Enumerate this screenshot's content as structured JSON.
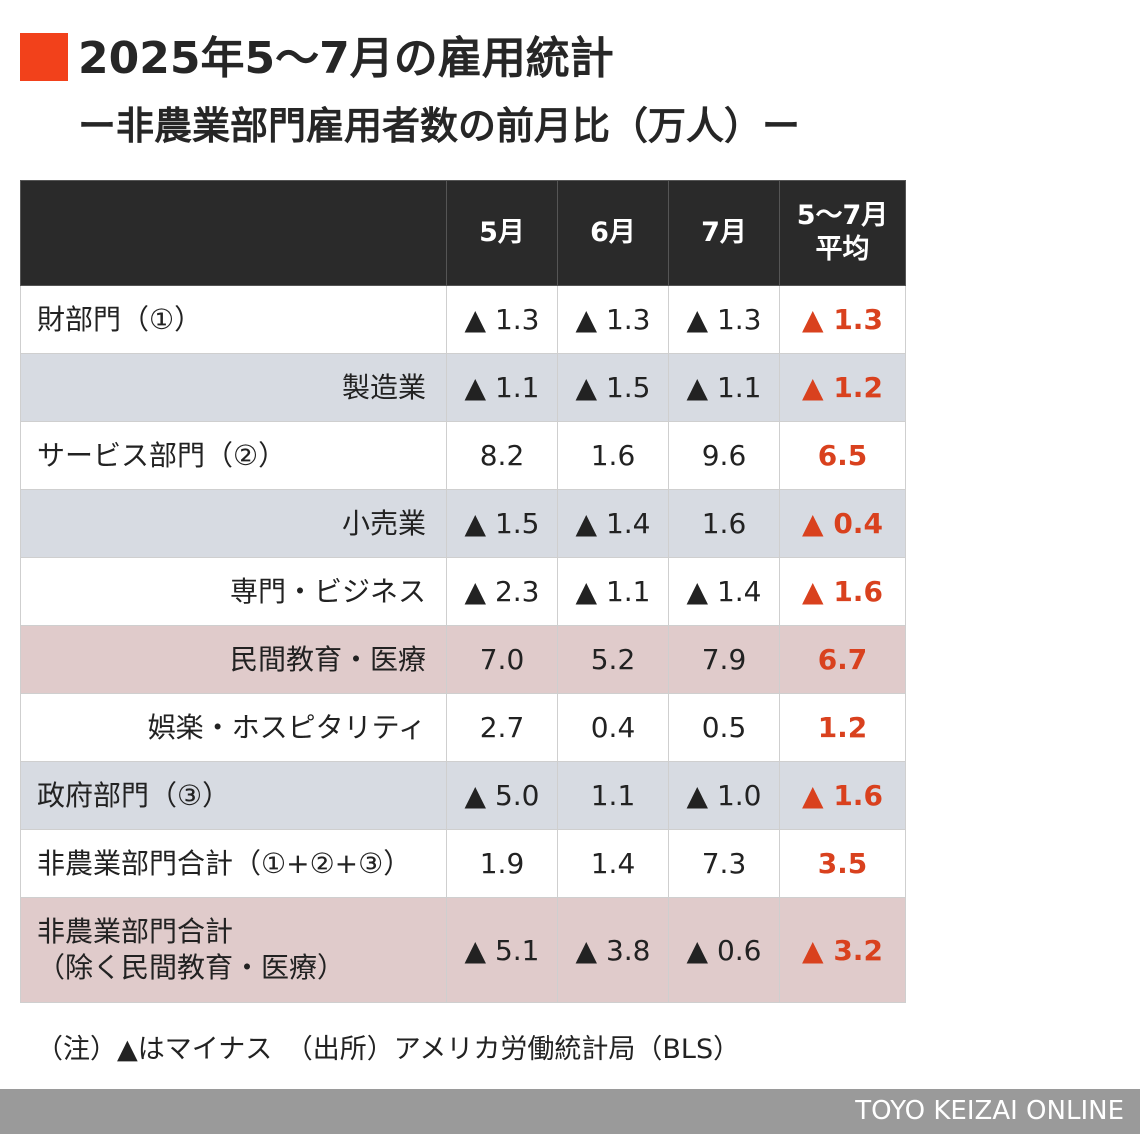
{
  "header": {
    "title": "2025年5～7月の雇用統計",
    "subtitle": "ー非農業部門雇用者数の前月比（万人）ー"
  },
  "colors": {
    "accent": "#f2411b",
    "header_bg": "#2a2a2a",
    "avg_text": "#d9411e",
    "row_gray": "#d7dbe2",
    "row_pink": "#e0cbcb",
    "footer_bg": "#9a9a9a"
  },
  "chart_data": {
    "type": "table",
    "columns": [
      "",
      "5月",
      "6月",
      "7月",
      "5～7月\n平均"
    ],
    "rows": [
      {
        "label": "財部門（①）",
        "indent": false,
        "bg": "white",
        "values": [
          "▲ 1.3",
          "▲ 1.3",
          "▲ 1.3",
          "▲ 1.3"
        ]
      },
      {
        "label": "製造業",
        "indent": true,
        "bg": "gray",
        "values": [
          "▲ 1.1",
          "▲ 1.5",
          "▲ 1.1",
          "▲ 1.2"
        ]
      },
      {
        "label": "サービス部門（②）",
        "indent": false,
        "bg": "white",
        "values": [
          "8.2",
          "1.6",
          "9.6",
          "6.5"
        ]
      },
      {
        "label": "小売業",
        "indent": true,
        "bg": "gray",
        "values": [
          "▲ 1.5",
          "▲ 1.4",
          "1.6",
          "▲ 0.4"
        ]
      },
      {
        "label": "専門・ビジネス",
        "indent": true,
        "bg": "white",
        "values": [
          "▲ 2.3",
          "▲ 1.1",
          "▲ 1.4",
          "▲ 1.6"
        ]
      },
      {
        "label": "民間教育・医療",
        "indent": true,
        "bg": "pink",
        "values": [
          "7.0",
          "5.2",
          "7.9",
          "6.7"
        ]
      },
      {
        "label": "娯楽・ホスピタリティ",
        "indent": true,
        "bg": "white",
        "values": [
          "2.7",
          "0.4",
          "0.5",
          "1.2"
        ]
      },
      {
        "label": "政府部門（③）",
        "indent": false,
        "bg": "gray",
        "values": [
          "▲ 5.0",
          "1.1",
          "▲ 1.0",
          "▲ 1.6"
        ]
      },
      {
        "label": "非農業部門合計（①+②+③）",
        "indent": false,
        "bg": "white",
        "values": [
          "1.9",
          "1.4",
          "7.3",
          "3.5"
        ]
      },
      {
        "label": "非農業部門合計\n（除く民間教育・医療）",
        "indent": false,
        "bg": "pink",
        "tall": true,
        "values": [
          "▲ 5.1",
          "▲ 3.8",
          "▲ 0.6",
          "▲ 3.2"
        ]
      }
    ]
  },
  "notes": "（注）▲はマイナス　（出所）アメリカ労働統計局（BLS）",
  "footer": {
    "credit": "TOYO KEIZAI ONLINE"
  }
}
